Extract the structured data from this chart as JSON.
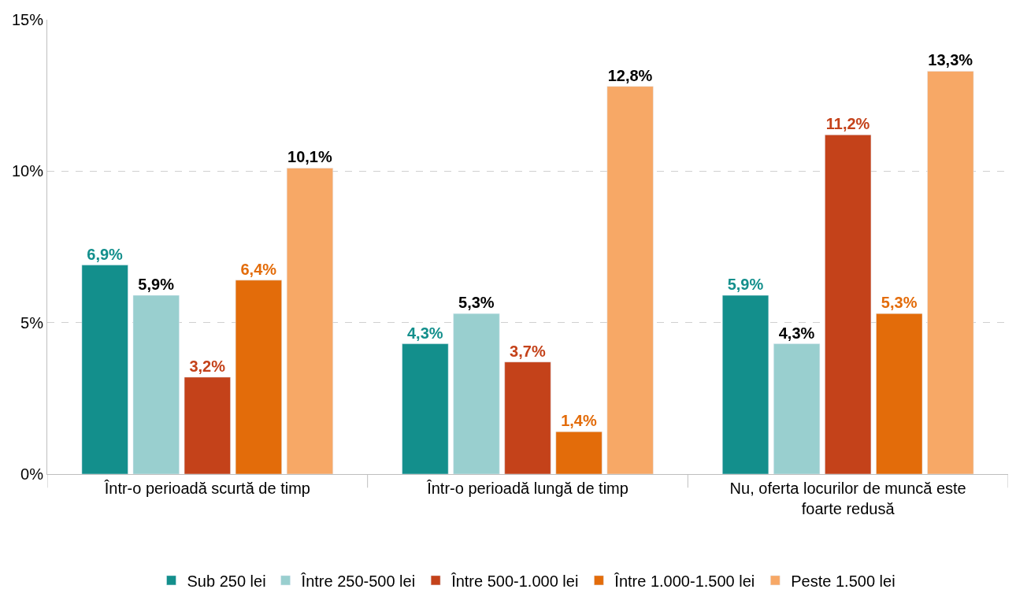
{
  "chart_data": {
    "type": "bar",
    "categories": [
      "Într-o perioadă scurtă de timp",
      "Într-o perioadă lungă de timp",
      "Nu, oferta locurilor de muncă este foarte redusă"
    ],
    "series": [
      {
        "name": "Sub 250 lei",
        "color": "#138f8c",
        "values": [
          6.9,
          4.3,
          5.9
        ],
        "value_labels": [
          "6,9%",
          "4,3%",
          "5,9%"
        ]
      },
      {
        "name": "Între 250-500 lei",
        "color": "#99cfcf",
        "values": [
          5.9,
          5.3,
          4.3
        ],
        "value_labels": [
          "5,9%",
          "5,3%",
          "4,3%"
        ]
      },
      {
        "name": "Între 500-1.000 lei",
        "color": "#c4421a",
        "values": [
          3.2,
          3.7,
          11.2
        ],
        "value_labels": [
          "3,2%",
          "3,7%",
          "11,2%"
        ]
      },
      {
        "name": "Între 1.000-1.500 lei",
        "color": "#e36c0a",
        "values": [
          6.4,
          1.4,
          5.3
        ],
        "value_labels": [
          "6,4%",
          "1,4%",
          "5,3%"
        ]
      },
      {
        "name": "Peste 1.500 lei",
        "color": "#f7a866",
        "values": [
          10.1,
          12.8,
          13.3
        ],
        "value_labels": [
          "10,1%",
          "12,8%",
          "13,3%"
        ]
      }
    ],
    "ylim": [
      0,
      15
    ],
    "yticks": [
      {
        "value": 0,
        "label": "0%"
      },
      {
        "value": 5,
        "label": "5%"
      },
      {
        "value": 10,
        "label": "10%"
      },
      {
        "value": 15,
        "label": "15%"
      }
    ],
    "grid": "y",
    "legend": "bottom"
  }
}
